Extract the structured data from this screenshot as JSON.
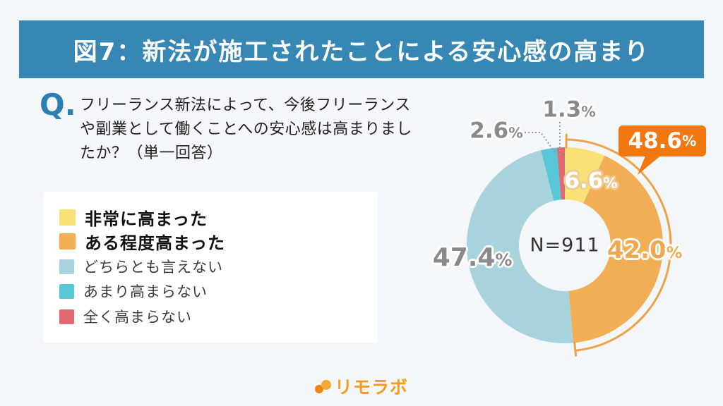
{
  "colors": {
    "background": "#F4F7F9",
    "banner_blue": "#3787B4",
    "question_blue": "#2B7FB3",
    "label_gray": "#8A8A8A",
    "highlight_orange": "#F1770E",
    "bracket_orange": "#EFA148",
    "logo_orange": "#F49C22"
  },
  "header": {
    "title": "図7：新法が施工されたことによる安心感の高まり"
  },
  "question": {
    "mark": "Q.",
    "lines": [
      "フリーランス新法によって、今後フリーランス",
      "や副業として働くことへの安心感は高まりまし",
      "たか？（単一回答）"
    ]
  },
  "chart_data": {
    "type": "pie",
    "donut": true,
    "title": "図7：新法が施工されたことによる安心感の高まり",
    "categories": [
      "非常に高まった",
      "ある程度高まった",
      "どちらとも言えない",
      "あまり高まらない",
      "全く高まらない"
    ],
    "values": [
      6.6,
      42.0,
      47.4,
      2.6,
      1.3
    ],
    "value_labels": [
      "6.6",
      "42.0",
      "47.4",
      "2.6",
      "1.3"
    ],
    "unit": "%",
    "colors": [
      "#FAE176",
      "#F2AE54",
      "#A9D3DC",
      "#57C6D6",
      "#E26972"
    ],
    "start_angle_deg": 0,
    "direction": "clockwise",
    "center_label": "N=911",
    "legend_position": "left",
    "highlight": {
      "value": 48.6,
      "label": "48.6",
      "unit": "%",
      "covers": [
        "非常に高まった",
        "ある程度高まった"
      ],
      "color": "#F1770E",
      "bracket_color": "#EFA148"
    }
  },
  "footer": {
    "logo_text": "リモラボ"
  }
}
